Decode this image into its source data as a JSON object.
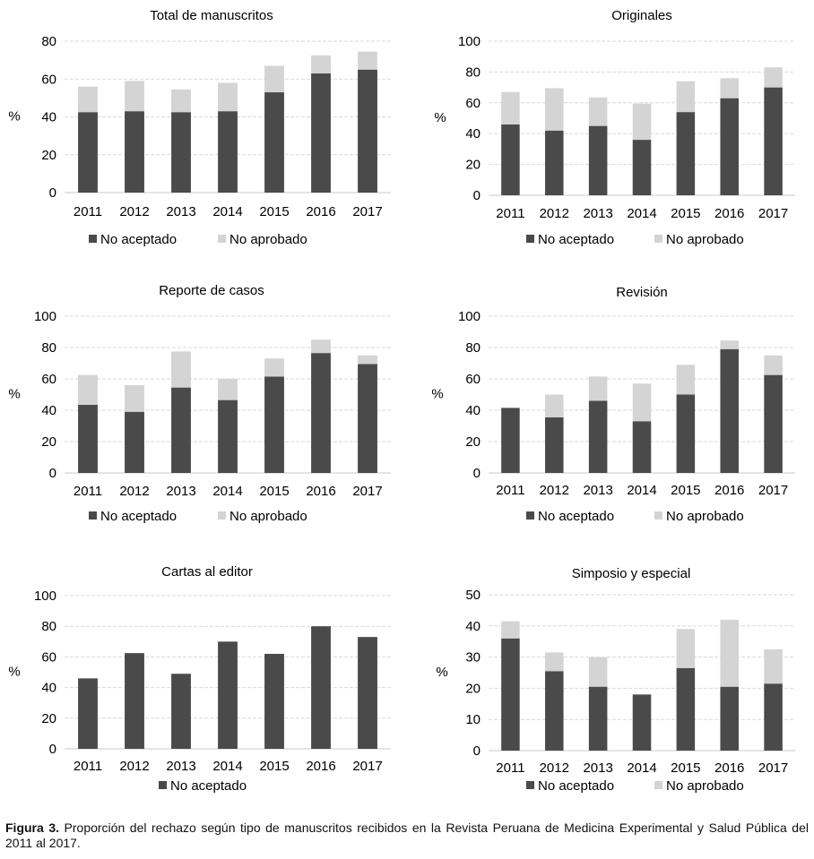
{
  "colors": {
    "no_aceptado": "#4a4a4a",
    "no_aprobado": "#d4d4d4",
    "grid": "#d9d9d9"
  },
  "chart_data": [
    {
      "type": "bar",
      "stacked": true,
      "title": "Total de manuscritos",
      "ylabel": "%",
      "ylim": [
        0,
        80
      ],
      "yticks": [
        0,
        20,
        40,
        60,
        80
      ],
      "categories": [
        "2011",
        "2012",
        "2013",
        "2014",
        "2015",
        "2016",
        "2017"
      ],
      "series": [
        {
          "name": "No aceptado",
          "values": [
            42.5,
            43,
            42.5,
            43,
            53,
            63,
            65
          ]
        },
        {
          "name": "No aprobado",
          "values": [
            13.5,
            16,
            12,
            15,
            14,
            9.5,
            9.5
          ]
        }
      ],
      "legend": "bottom",
      "grid": true
    },
    {
      "type": "bar",
      "stacked": true,
      "title": "Originales",
      "ylabel": "%",
      "ylim": [
        0,
        100
      ],
      "yticks": [
        0,
        20,
        40,
        60,
        80,
        100
      ],
      "categories": [
        "2011",
        "2012",
        "2013",
        "2014",
        "2015",
        "2016",
        "2017"
      ],
      "series": [
        {
          "name": "No aceptado",
          "values": [
            46,
            42,
            45,
            36,
            54,
            63,
            70
          ]
        },
        {
          "name": "No aprobado",
          "values": [
            21,
            27.5,
            18.5,
            23.5,
            20,
            13,
            13
          ]
        }
      ],
      "legend": "bottom",
      "grid": true
    },
    {
      "type": "bar",
      "stacked": true,
      "title": "Reporte de casos",
      "ylabel": "%",
      "ylim": [
        0,
        100
      ],
      "yticks": [
        0,
        20,
        40,
        60,
        80,
        100
      ],
      "categories": [
        "2011",
        "2012",
        "2013",
        "2014",
        "2015",
        "2016",
        "2017"
      ],
      "series": [
        {
          "name": "No aceptado",
          "values": [
            43.5,
            39,
            54.5,
            46.5,
            61.5,
            76.5,
            69.5
          ]
        },
        {
          "name": "No aprobado",
          "values": [
            19,
            17,
            23,
            13.5,
            11.5,
            8.5,
            5.5
          ]
        }
      ],
      "legend": "bottom",
      "grid": true
    },
    {
      "type": "bar",
      "stacked": true,
      "title": "Revisión",
      "ylabel": "%",
      "ylim": [
        0,
        100
      ],
      "yticks": [
        0,
        20,
        40,
        60,
        80,
        100
      ],
      "categories": [
        "2011",
        "2012",
        "2013",
        "2014",
        "2015",
        "2016",
        "2017"
      ],
      "series": [
        {
          "name": "No aceptado",
          "values": [
            41.5,
            35.5,
            46,
            33,
            50,
            79,
            62.5
          ]
        },
        {
          "name": "No aprobado",
          "values": [
            0,
            14.5,
            15.5,
            24,
            19,
            5.5,
            12.5
          ]
        }
      ],
      "legend": "bottom",
      "grid": true
    },
    {
      "type": "bar",
      "stacked": false,
      "title": "Cartas al editor",
      "ylabel": "%",
      "ylim": [
        0,
        100
      ],
      "yticks": [
        0,
        20,
        40,
        60,
        80,
        100
      ],
      "categories": [
        "2011",
        "2012",
        "2013",
        "2014",
        "2015",
        "2016",
        "2017"
      ],
      "series": [
        {
          "name": "No aceptado",
          "values": [
            46,
            62.5,
            49,
            70,
            62,
            80,
            73
          ]
        }
      ],
      "legend": "bottom",
      "grid": true
    },
    {
      "type": "bar",
      "stacked": true,
      "title": "Simposio y especial",
      "ylabel": "%",
      "ylim": [
        0,
        50
      ],
      "yticks": [
        0,
        10,
        20,
        30,
        40,
        50
      ],
      "categories": [
        "2011",
        "2012",
        "2013",
        "2014",
        "2015",
        "2016",
        "2017"
      ],
      "series": [
        {
          "name": "No aceptado",
          "values": [
            36,
            25.5,
            20.5,
            18,
            26.5,
            20.5,
            21.5
          ]
        },
        {
          "name": "No aprobado",
          "values": [
            5.5,
            6,
            9.5,
            0,
            12.5,
            21.5,
            11
          ]
        }
      ],
      "legend": "bottom",
      "grid": true
    }
  ],
  "caption": {
    "label": "Figura 3.",
    "text": " Proporción del rechazo según tipo de manuscritos recibidos en la Revista Peruana de Medicina Experimental y Salud Pública del 2011 al 2017."
  }
}
